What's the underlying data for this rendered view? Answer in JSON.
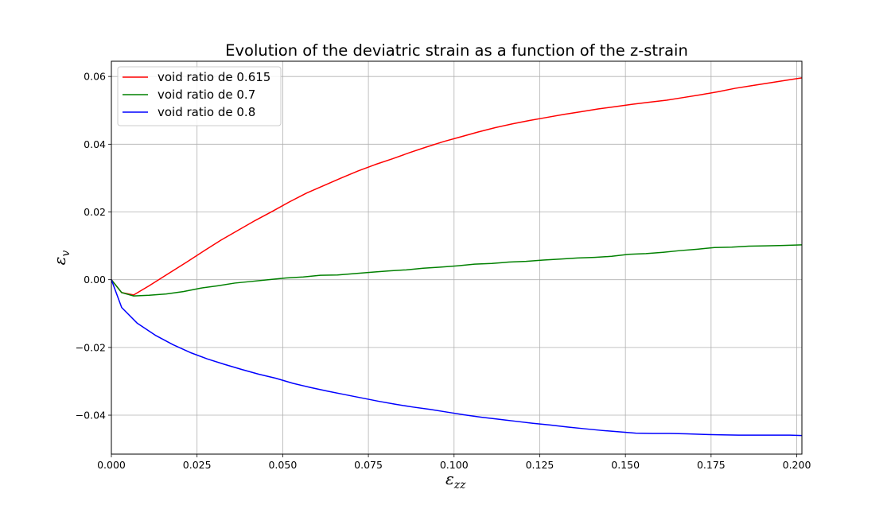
{
  "chart_data": {
    "type": "line",
    "title": "Evolution of the deviatric strain as a function of the z-strain",
    "xlabel": {
      "symbol": "ε",
      "subscript": "zz"
    },
    "ylabel": {
      "symbol": "ε",
      "subscript": "v"
    },
    "xlim": [
      0.0,
      0.2015
    ],
    "ylim": [
      -0.0515,
      0.0645
    ],
    "xticks": [
      "0.000",
      "0.025",
      "0.050",
      "0.075",
      "0.100",
      "0.125",
      "0.150",
      "0.175",
      "0.200"
    ],
    "yticks": [
      "−0.04",
      "−0.02",
      "0.00",
      "0.02",
      "0.04",
      "0.06"
    ],
    "grid": true,
    "legend_position": "top-left",
    "series": [
      {
        "name": "void ratio de 0.615",
        "color": "#ff0000",
        "x": [
          0.0,
          0.003,
          0.0065,
          0.011,
          0.016,
          0.022,
          0.027,
          0.032,
          0.037,
          0.042,
          0.047,
          0.052,
          0.057,
          0.062,
          0.067,
          0.072,
          0.077,
          0.082,
          0.087,
          0.092,
          0.097,
          0.102,
          0.107,
          0.112,
          0.117,
          0.122,
          0.127,
          0.132,
          0.137,
          0.142,
          0.147,
          0.152,
          0.157,
          0.162,
          0.167,
          0.172,
          0.177,
          0.182,
          0.187,
          0.192,
          0.197,
          0.2015
        ],
        "y": [
          0.0,
          -0.0038,
          -0.0045,
          -0.0018,
          0.0014,
          0.0052,
          0.0085,
          0.0117,
          0.0146,
          0.0175,
          0.0202,
          0.023,
          0.0256,
          0.0278,
          0.03,
          0.0321,
          0.034,
          0.0357,
          0.0375,
          0.0392,
          0.0408,
          0.0422,
          0.0436,
          0.0449,
          0.046,
          0.047,
          0.0479,
          0.0488,
          0.0496,
          0.0504,
          0.0511,
          0.0518,
          0.0524,
          0.053,
          0.0538,
          0.0546,
          0.0555,
          0.0565,
          0.0573,
          0.0581,
          0.0589,
          0.0596
        ]
      },
      {
        "name": "void ratio de 0.7",
        "color": "#008000",
        "x": [
          0.0,
          0.003,
          0.0065,
          0.011,
          0.016,
          0.021,
          0.026,
          0.031,
          0.036,
          0.041,
          0.046,
          0.051,
          0.056,
          0.061,
          0.066,
          0.071,
          0.076,
          0.081,
          0.086,
          0.091,
          0.096,
          0.101,
          0.106,
          0.111,
          0.116,
          0.121,
          0.126,
          0.131,
          0.136,
          0.141,
          0.146,
          0.151,
          0.156,
          0.161,
          0.166,
          0.171,
          0.176,
          0.181,
          0.186,
          0.191,
          0.196,
          0.2015
        ],
        "y": [
          0.0,
          -0.0038,
          -0.0048,
          -0.0046,
          -0.0042,
          -0.0035,
          -0.0025,
          -0.0018,
          -0.001,
          -0.0005,
          0.0,
          0.0005,
          0.0008,
          0.0013,
          0.0014,
          0.0018,
          0.0022,
          0.0026,
          0.0029,
          0.0034,
          0.0037,
          0.0041,
          0.0046,
          0.0048,
          0.0052,
          0.0054,
          0.0058,
          0.0061,
          0.0064,
          0.0066,
          0.0069,
          0.0075,
          0.0077,
          0.0081,
          0.0086,
          0.009,
          0.0095,
          0.0096,
          0.0099,
          0.01,
          0.0101,
          0.0103
        ]
      },
      {
        "name": "void ratio de 0.8",
        "color": "#0000ff",
        "x": [
          0.0,
          0.003,
          0.0075,
          0.013,
          0.018,
          0.023,
          0.028,
          0.033,
          0.038,
          0.043,
          0.048,
          0.053,
          0.058,
          0.063,
          0.068,
          0.073,
          0.078,
          0.083,
          0.088,
          0.093,
          0.098,
          0.103,
          0.108,
          0.113,
          0.118,
          0.123,
          0.128,
          0.133,
          0.138,
          0.143,
          0.148,
          0.153,
          0.158,
          0.163,
          0.168,
          0.173,
          0.178,
          0.183,
          0.188,
          0.193,
          0.198,
          0.2015
        ],
        "y": [
          0.0,
          -0.0082,
          -0.0128,
          -0.0165,
          -0.0192,
          -0.0215,
          -0.0234,
          -0.025,
          -0.0265,
          -0.0279,
          -0.0291,
          -0.0306,
          -0.0318,
          -0.0329,
          -0.0339,
          -0.0349,
          -0.0359,
          -0.0368,
          -0.0376,
          -0.0383,
          -0.0391,
          -0.0399,
          -0.0406,
          -0.0412,
          -0.0418,
          -0.0424,
          -0.0429,
          -0.0435,
          -0.044,
          -0.0445,
          -0.0449,
          -0.0453,
          -0.0454,
          -0.0454,
          -0.0455,
          -0.0457,
          -0.0458,
          -0.0459,
          -0.0459,
          -0.0459,
          -0.0459,
          -0.046
        ]
      }
    ]
  }
}
